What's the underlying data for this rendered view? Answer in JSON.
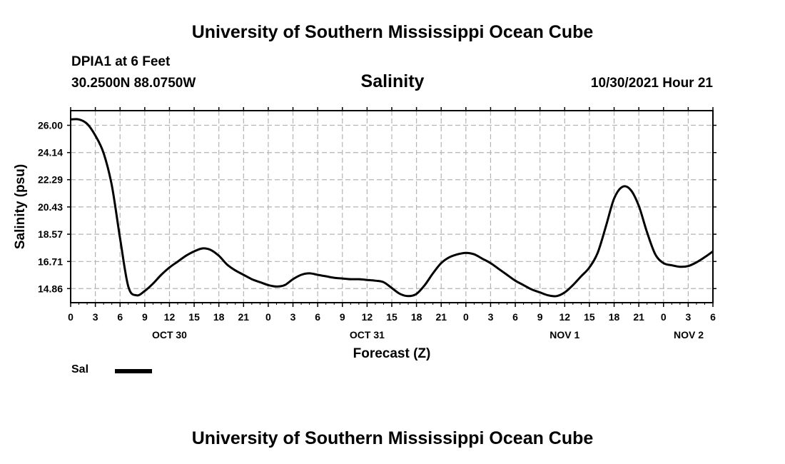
{
  "header": {
    "title": "University of Southern Mississippi Ocean Cube",
    "station": "DPIA1 at 6 Feet",
    "coords": "30.2500N  88.0750W",
    "timestamp": "10/30/2021 Hour 21"
  },
  "footer": {
    "title": "University of Southern Mississippi Ocean Cube"
  },
  "legend": {
    "label": "Sal"
  },
  "chart_data": {
    "type": "line",
    "title": "Salinity",
    "xlabel": "Forecast (Z)",
    "ylabel": "Salinity (psu)",
    "x_unit": "hours since Oct 30 00Z",
    "xlim": [
      0,
      78
    ],
    "ylim": [
      13.9,
      27.0
    ],
    "y_ticks": [
      "26.00",
      "24.14",
      "22.29",
      "20.43",
      "18.57",
      "16.71",
      "14.86"
    ],
    "x_ticks": [
      "0",
      "3",
      "6",
      "9",
      "12",
      "15",
      "18",
      "21",
      "0",
      "3",
      "6",
      "9",
      "12",
      "15",
      "18",
      "21",
      "0",
      "3",
      "6",
      "9",
      "12",
      "15",
      "18",
      "21",
      "0",
      "3",
      "6"
    ],
    "date_labels": [
      {
        "label": "OCT 30",
        "hour": 12
      },
      {
        "label": "OCT 31",
        "hour": 36
      },
      {
        "label": "NOV 1",
        "hour": 60
      },
      {
        "label": "NOV 2",
        "hour": 78
      }
    ],
    "grid": true,
    "series": [
      {
        "name": "Sal",
        "x": [
          0,
          1,
          2,
          3,
          4,
          5,
          6,
          7,
          8,
          9,
          10,
          11,
          12,
          13,
          14,
          15,
          16,
          17,
          18,
          19,
          20,
          21,
          22,
          23,
          24,
          25,
          26,
          27,
          28,
          29,
          30,
          31,
          32,
          33,
          34,
          35,
          36,
          37,
          38,
          39,
          40,
          41,
          42,
          43,
          44,
          45,
          46,
          47,
          48,
          49,
          50,
          51,
          52,
          53,
          54,
          55,
          56,
          57,
          58,
          59,
          60,
          61,
          62,
          63,
          64,
          65,
          66,
          67,
          68,
          69,
          70,
          71,
          72,
          73,
          74,
          75,
          76,
          77,
          78
        ],
        "values": [
          26.4,
          26.4,
          26.1,
          25.3,
          24.1,
          21.9,
          18.3,
          15.0,
          14.4,
          14.7,
          15.2,
          15.8,
          16.3,
          16.7,
          17.1,
          17.4,
          17.6,
          17.5,
          17.1,
          16.5,
          16.1,
          15.8,
          15.5,
          15.3,
          15.1,
          15.0,
          15.1,
          15.5,
          15.8,
          15.9,
          15.8,
          15.7,
          15.6,
          15.55,
          15.5,
          15.5,
          15.45,
          15.4,
          15.3,
          14.9,
          14.5,
          14.35,
          14.5,
          15.1,
          15.9,
          16.6,
          17.0,
          17.2,
          17.3,
          17.2,
          16.9,
          16.6,
          16.2,
          15.8,
          15.4,
          15.1,
          14.8,
          14.6,
          14.4,
          14.35,
          14.6,
          15.1,
          15.7,
          16.3,
          17.3,
          19.1,
          21.0,
          21.8,
          21.6,
          20.5,
          18.7,
          17.2,
          16.6,
          16.45,
          16.35,
          16.4,
          16.65,
          17.0,
          17.4
        ]
      }
    ]
  }
}
